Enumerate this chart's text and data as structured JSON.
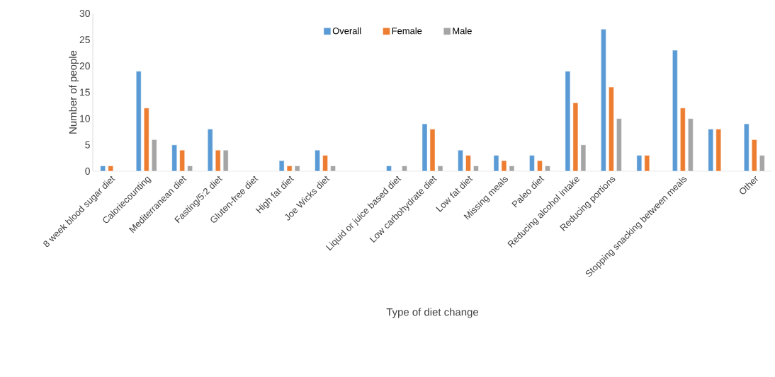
{
  "chart_data": {
    "type": "bar",
    "xlabel": "Type of diet change",
    "ylabel": "Number of people",
    "categories": [
      "8 week blood sugar diet",
      "Caloriecounting",
      "Mediterranean diet",
      "Fasting/5:2 diet",
      "Gluten-free diet",
      "High fat diet",
      "Joe Wicks diet",
      null,
      "Liquid or juice based diet",
      "Low carbohydrate diet",
      "Low fat diet",
      "Missing meals",
      "Paleo diet",
      "Reducing alcohol intake",
      "Reducing portions",
      null,
      "Stopping snacking between meals",
      null,
      "Other"
    ],
    "series": [
      {
        "name": "Overall",
        "color": "#5b9bd5",
        "values": [
          1,
          19,
          5,
          8,
          null,
          2,
          4,
          null,
          1,
          9,
          4,
          3,
          3,
          19,
          27,
          3,
          23,
          8,
          9
        ]
      },
      {
        "name": "Female",
        "color": "#ed7d31",
        "values": [
          1,
          12,
          4,
          4,
          null,
          1,
          3,
          null,
          null,
          8,
          3,
          2,
          2,
          13,
          16,
          3,
          12,
          8,
          6
        ]
      },
      {
        "name": "Male",
        "color": "#a5a5a5",
        "values": [
          null,
          6,
          1,
          4,
          null,
          1,
          1,
          null,
          1,
          1,
          1,
          1,
          1,
          5,
          10,
          null,
          10,
          null,
          3
        ]
      }
    ],
    "ylim": [
      0,
      30
    ],
    "yticks": [
      0,
      5,
      10,
      15,
      20,
      25,
      30
    ],
    "grid": false,
    "legend": "top"
  }
}
